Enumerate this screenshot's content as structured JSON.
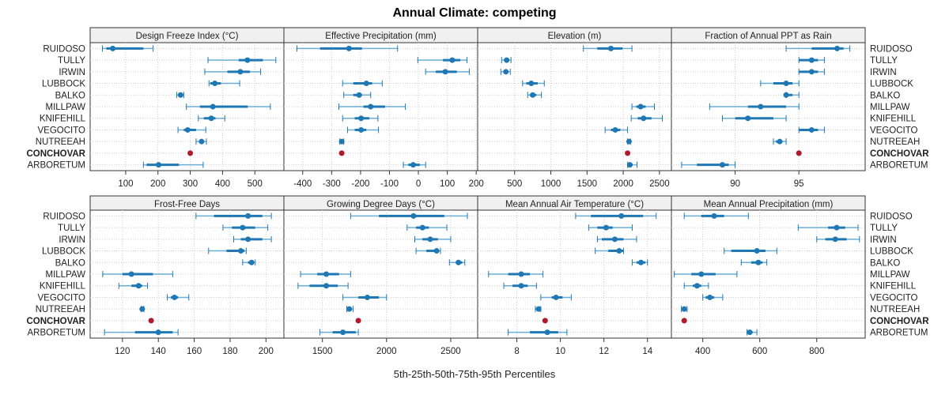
{
  "chart_data": {
    "type": "dotplot-percentile",
    "title": "Annual Climate: competing",
    "xlabel": "5th-25th-50th-75th-95th Percentiles",
    "ylabel": "",
    "grid": true,
    "colors": {
      "series": "#1f78b4",
      "series_light": "#6baed6",
      "highlight": "#b2182b",
      "strip": "#f0f0f0"
    },
    "categories": [
      "RUIDOSO",
      "TULLY",
      "IRWIN",
      "LUBBOCK",
      "BALKO",
      "MILLPAW",
      "KNIFEHILL",
      "VEGOCITO",
      "NUTREEAH",
      "CONCHOVAR",
      "ARBORETUM"
    ],
    "highlight_category": "CONCHOVAR",
    "panels": [
      {
        "title": "Design Freeze Index (°C)",
        "xlim": [
          -10,
          590
        ],
        "ticks": [
          100,
          200,
          300,
          400,
          500
        ],
        "values": [
          [
            28,
            40,
            60,
            155,
            185
          ],
          [
            355,
            450,
            477,
            525,
            565
          ],
          [
            345,
            415,
            455,
            485,
            518
          ],
          [
            358,
            362,
            376,
            395,
            453
          ],
          [
            258,
            262,
            270,
            275,
            280
          ],
          [
            288,
            330,
            370,
            478,
            548
          ],
          [
            325,
            342,
            365,
            378,
            407
          ],
          [
            262,
            280,
            292,
            318,
            348
          ],
          [
            318,
            328,
            335,
            342,
            350
          ],
          [
            300,
            300,
            300,
            300,
            300
          ],
          [
            155,
            165,
            202,
            265,
            340
          ]
        ]
      },
      {
        "title": "Effective Precipitation (mm)",
        "xlim": [
          -465,
          205
        ],
        "ticks": [
          -400,
          -300,
          -200,
          -100,
          0,
          100,
          200
        ],
        "values": [
          [
            -420,
            -340,
            -240,
            -195,
            -72
          ],
          [
            -2,
            85,
            117,
            145,
            168
          ],
          [
            25,
            60,
            93,
            133,
            176
          ],
          [
            -262,
            -225,
            -180,
            -160,
            -125
          ],
          [
            -258,
            -225,
            -205,
            -195,
            -165
          ],
          [
            -275,
            -190,
            -165,
            -115,
            -45
          ],
          [
            -262,
            -220,
            -198,
            -170,
            -140
          ],
          [
            -245,
            -220,
            -198,
            -180,
            -138
          ],
          [
            -272,
            -268,
            -265,
            -262,
            -258
          ],
          [
            -265,
            -265,
            -265,
            -265,
            -265
          ],
          [
            -52,
            -35,
            -18,
            5,
            25
          ]
        ]
      },
      {
        "title": "Elevation (m)",
        "xlim": [
          -10,
          2665
        ],
        "ticks": [
          500,
          1000,
          1500,
          2000,
          2500
        ],
        "values": [
          [
            1450,
            1640,
            1830,
            1990,
            2120
          ],
          [
            320,
            360,
            390,
            420,
            450
          ],
          [
            310,
            350,
            380,
            410,
            440
          ],
          [
            610,
            660,
            730,
            820,
            910
          ],
          [
            680,
            710,
            750,
            800,
            870
          ],
          [
            2120,
            2180,
            2240,
            2310,
            2430
          ],
          [
            2110,
            2200,
            2280,
            2390,
            2540
          ],
          [
            1750,
            1830,
            1890,
            1960,
            2060
          ],
          [
            2060,
            2070,
            2080,
            2090,
            2100
          ],
          [
            2060,
            2060,
            2060,
            2060,
            2060
          ],
          [
            2060,
            2070,
            2090,
            2130,
            2190
          ]
        ]
      },
      {
        "title": "Fraction of Annual PPT as Rain",
        "xlim": [
          85,
          100.2
        ],
        "ticks": [
          90,
          95
        ],
        "values": [
          [
            94,
            96,
            98,
            98.5,
            99
          ],
          [
            95,
            95,
            96,
            96.5,
            97
          ],
          [
            95,
            95,
            96,
            96.5,
            97
          ],
          [
            92,
            93,
            94,
            94.5,
            95
          ],
          [
            94,
            94,
            94,
            94.5,
            95
          ],
          [
            88,
            91,
            92,
            94,
            95
          ],
          [
            89,
            90,
            91,
            93,
            94
          ],
          [
            95,
            95,
            96,
            96.5,
            97
          ],
          [
            93,
            93.2,
            93.5,
            93.7,
            94
          ],
          [
            95,
            95,
            95,
            95,
            95
          ],
          [
            85.8,
            87,
            89,
            89.5,
            90
          ]
        ]
      },
      {
        "title": "Frost-Free Days",
        "xlim": [
          102,
          210
        ],
        "ticks": [
          120,
          140,
          160,
          180,
          200
        ],
        "values": [
          [
            161,
            171,
            190,
            198,
            203
          ],
          [
            176,
            181,
            187,
            194,
            201
          ],
          [
            182,
            186,
            190,
            198,
            203
          ],
          [
            168,
            178,
            186,
            188,
            189
          ],
          [
            187,
            190,
            192,
            193,
            194
          ],
          [
            109,
            120,
            125,
            137,
            148
          ],
          [
            118,
            125,
            129,
            131,
            134
          ],
          [
            145,
            147,
            149,
            151,
            157
          ],
          [
            130.5,
            131,
            131,
            131.5,
            132
          ],
          [
            136,
            136,
            136,
            136,
            136
          ],
          [
            110,
            127,
            140,
            148,
            151
          ]
        ]
      },
      {
        "title": "Growing Degree Days (°C)",
        "xlim": [
          1200,
          2710
        ],
        "ticks": [
          1500,
          2000,
          2500
        ],
        "values": [
          [
            1720,
            1940,
            2210,
            2450,
            2630
          ],
          [
            2160,
            2230,
            2280,
            2330,
            2470
          ],
          [
            2220,
            2280,
            2340,
            2400,
            2500
          ],
          [
            2230,
            2310,
            2390,
            2400,
            2420
          ],
          [
            2490,
            2540,
            2560,
            2590,
            2610
          ],
          [
            1330,
            1460,
            1530,
            1630,
            1720
          ],
          [
            1310,
            1400,
            1530,
            1620,
            1700
          ],
          [
            1660,
            1780,
            1850,
            1940,
            2000
          ],
          [
            1690,
            1700,
            1710,
            1730,
            1740
          ],
          [
            1780,
            1780,
            1780,
            1780,
            1780
          ],
          [
            1480,
            1580,
            1660,
            1760,
            1780
          ]
        ]
      },
      {
        "title": "Mean Annual Air Temperature (°C)",
        "xlim": [
          6.2,
          15.1
        ],
        "ticks": [
          8,
          10,
          12,
          14
        ],
        "values": [
          [
            10.7,
            11.4,
            12.8,
            13.8,
            14.4
          ],
          [
            11.3,
            11.7,
            12.1,
            12.4,
            13.3
          ],
          [
            11.7,
            11.9,
            12.5,
            12.9,
            13.5
          ],
          [
            11.6,
            12.2,
            12.7,
            12.9,
            12.9
          ],
          [
            13.3,
            13.5,
            13.7,
            13.9,
            14.0
          ],
          [
            6.7,
            7.6,
            8.2,
            8.6,
            9.2
          ],
          [
            7.4,
            7.8,
            8.2,
            8.5,
            8.9
          ],
          [
            9.1,
            9.6,
            9.8,
            10.1,
            10.5
          ],
          [
            8.85,
            8.9,
            9.0,
            9.05,
            9.1
          ],
          [
            9.3,
            9.3,
            9.3,
            9.3,
            9.3
          ],
          [
            7.6,
            8.6,
            9.4,
            9.9,
            10.3
          ]
        ]
      },
      {
        "title": "Mean Annual Precipitation (mm)",
        "xlim": [
          290,
          970
        ],
        "ticks": [
          400,
          600,
          800
        ],
        "values": [
          [
            335,
            395,
            440,
            475,
            560
          ],
          [
            735,
            840,
            870,
            900,
            945
          ],
          [
            800,
            830,
            865,
            905,
            950
          ],
          [
            475,
            500,
            590,
            620,
            660
          ],
          [
            535,
            570,
            595,
            610,
            625
          ],
          [
            300,
            360,
            395,
            445,
            520
          ],
          [
            335,
            365,
            380,
            395,
            420
          ],
          [
            400,
            410,
            425,
            440,
            470
          ],
          [
            325,
            330,
            335,
            340,
            345
          ],
          [
            335,
            335,
            335,
            335,
            335
          ],
          [
            555,
            560,
            565,
            575,
            590
          ]
        ]
      }
    ]
  }
}
